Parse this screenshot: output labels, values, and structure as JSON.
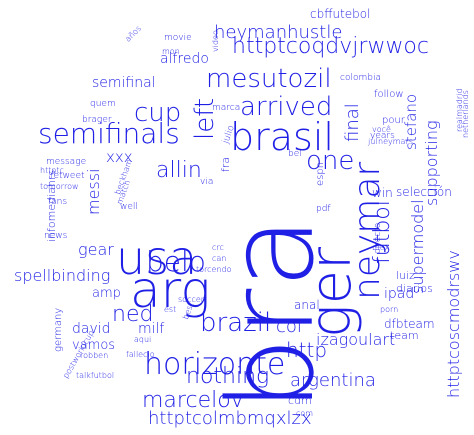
{
  "cloud": {
    "color": "#1f1fe6",
    "words": [
      {
        "text": "bra",
        "size": 118,
        "rot": -90
      },
      {
        "text": "arg",
        "size": 50,
        "rot": 0
      },
      {
        "text": "ger",
        "size": 56,
        "rot": -90
      },
      {
        "text": "usa",
        "size": 46,
        "rot": 0
      },
      {
        "text": "brasil",
        "size": 38,
        "rot": 0
      },
      {
        "text": "neymar",
        "size": 36,
        "rot": -90
      },
      {
        "text": "horizonte",
        "size": 30,
        "rot": 0
      },
      {
        "text": "semifinals",
        "size": 28,
        "rot": 0
      },
      {
        "text": "mesutozil",
        "size": 26,
        "rot": 0
      },
      {
        "text": "arrived",
        "size": 26,
        "rot": 0
      },
      {
        "text": "brazil",
        "size": 26,
        "rot": 0
      },
      {
        "text": "belo",
        "size": 28,
        "rot": 0
      },
      {
        "text": "cup",
        "size": 26,
        "rot": 0
      },
      {
        "text": "left",
        "size": 26,
        "rot": -90
      },
      {
        "text": "one",
        "size": 26,
        "rot": 0
      },
      {
        "text": "allin",
        "size": 22,
        "rot": 0
      },
      {
        "text": "futbol",
        "size": 22,
        "rot": -90
      },
      {
        "text": "httptcoqdvjrwwoc",
        "size": 22,
        "rot": 0
      },
      {
        "text": "nothing",
        "size": 22,
        "rot": 0
      },
      {
        "text": "marcelov",
        "size": 22,
        "rot": 0
      },
      {
        "text": "ned",
        "size": 22,
        "rot": 0
      },
      {
        "text": "http",
        "size": 20,
        "rot": 0
      },
      {
        "text": "heymanhustle",
        "size": 18,
        "rot": 0
      },
      {
        "text": "httptcolmbmqxlzx",
        "size": 18,
        "rot": 0
      },
      {
        "text": "argentina",
        "size": 18,
        "rot": 0
      },
      {
        "text": "col",
        "size": 18,
        "rot": 0
      },
      {
        "text": "final",
        "size": 18,
        "rot": -90
      },
      {
        "text": "httptcoscmodrswv",
        "size": 16,
        "rot": -90
      },
      {
        "text": "supermodel",
        "size": 16,
        "rot": -90
      },
      {
        "text": "supporting",
        "size": 16,
        "rot": -90
      },
      {
        "text": "izagoulart",
        "size": 16,
        "rot": 0
      },
      {
        "text": "spellbinding",
        "size": 16,
        "rot": 0
      },
      {
        "text": "messi",
        "size": 16,
        "rot": -90
      },
      {
        "text": "gear",
        "size": 16,
        "rot": 0
      },
      {
        "text": "stefano",
        "size": 15,
        "rot": -90
      },
      {
        "text": "xxx",
        "size": 15,
        "rot": 0
      },
      {
        "text": "alfredo",
        "size": 14,
        "rot": 0
      },
      {
        "text": "semifinal",
        "size": 14,
        "rot": 0
      },
      {
        "text": "ipad",
        "size": 14,
        "rot": 0
      },
      {
        "text": "david",
        "size": 14,
        "rot": 0
      },
      {
        "text": "milf",
        "size": 14,
        "rot": 0
      },
      {
        "text": "vamos",
        "size": 13,
        "rot": 0
      },
      {
        "text": "amp",
        "size": 13,
        "rot": 0
      },
      {
        "text": "anal",
        "size": 12,
        "rot": 0
      },
      {
        "text": "win",
        "size": 12,
        "rot": 0
      },
      {
        "text": "dfbteam",
        "size": 12,
        "rot": 0
      },
      {
        "text": "selección",
        "size": 12,
        "rot": 0
      },
      {
        "text": "cbffutebol",
        "size": 12,
        "rot": 0
      },
      {
        "text": "infomediahrs",
        "size": 11,
        "rot": -90
      },
      {
        "text": "germany",
        "size": 10,
        "rot": -90
      },
      {
        "text": "team",
        "size": 11,
        "rot": 0
      },
      {
        "text": "luiz",
        "size": 11,
        "rot": 0
      },
      {
        "text": "diarios",
        "size": 11,
        "rot": 0
      },
      {
        "text": "fra",
        "size": 11,
        "rot": -90
      },
      {
        "text": "cdm",
        "size": 11,
        "rot": 0
      },
      {
        "text": "espn",
        "size": 10,
        "rot": -90
      },
      {
        "text": "follow",
        "size": 10,
        "rot": 0
      },
      {
        "text": "pour",
        "size": 10,
        "rot": 0
      },
      {
        "text": "colombia",
        "size": 9,
        "rot": 0
      },
      {
        "text": "brager",
        "size": 9,
        "rot": 0
      },
      {
        "text": "message",
        "size": 9,
        "rot": 0
      },
      {
        "text": "fans",
        "size": 9,
        "rot": 0
      },
      {
        "text": "news",
        "size": 9,
        "rot": 0
      },
      {
        "text": "retweet",
        "size": 9,
        "rot": 0
      },
      {
        "text": "tomorrow",
        "size": 8,
        "rot": 0
      },
      {
        "text": "httptc",
        "size": 8,
        "rot": 0
      },
      {
        "text": "quem",
        "size": 9,
        "rot": 0
      },
      {
        "text": "marca",
        "size": 9,
        "rot": 0
      },
      {
        "text": "movie",
        "size": 9,
        "rot": 0
      },
      {
        "text": "mon",
        "size": 8,
        "rot": 0
      },
      {
        "text": "años",
        "size": 8,
        "rot": -45
      },
      {
        "text": "video",
        "size": 8,
        "rot": -90
      },
      {
        "text": "julio",
        "size": 9,
        "rot": -70
      },
      {
        "text": "well",
        "size": 9,
        "rot": 0
      },
      {
        "text": "beckham",
        "size": 8,
        "rot": -70
      },
      {
        "text": "match",
        "size": 8,
        "rot": -70
      },
      {
        "text": "via",
        "size": 9,
        "rot": 0
      },
      {
        "text": "bel",
        "size": 9,
        "rot": 0
      },
      {
        "text": "pdf",
        "size": 9,
        "rot": 0
      },
      {
        "text": "years",
        "size": 9,
        "rot": 0
      },
      {
        "text": "você",
        "size": 8,
        "rot": 0
      },
      {
        "text": "jul",
        "size": 8,
        "rot": 0
      },
      {
        "text": "neymars",
        "size": 8,
        "rot": 0
      },
      {
        "text": "netherlands",
        "size": 8,
        "rot": -90
      },
      {
        "text": "realmadrid",
        "size": 8,
        "rot": -90
      },
      {
        "text": "directo",
        "size": 9,
        "rot": -90
      },
      {
        "text": "mex",
        "size": 8,
        "rot": 0
      },
      {
        "text": "porn",
        "size": 8,
        "rot": 0
      },
      {
        "text": "crc",
        "size": 8,
        "rot": 0
      },
      {
        "text": "can",
        "size": 8,
        "rot": 0
      },
      {
        "text": "torcendo",
        "size": 8,
        "rot": 0
      },
      {
        "text": "soccer",
        "size": 8,
        "rot": 0
      },
      {
        "text": "est",
        "size": 8,
        "rot": 0
      },
      {
        "text": "best",
        "size": 8,
        "rot": -70
      },
      {
        "text": "aqui",
        "size": 8,
        "rot": 0
      },
      {
        "text": "fallecio",
        "size": 8,
        "rot": 0
      },
      {
        "text": "robben",
        "size": 8,
        "rot": 0
      },
      {
        "text": "postworldcup",
        "size": 8,
        "rot": -60
      },
      {
        "text": "talkfutbol",
        "size": 8,
        "rot": 0
      },
      {
        "text": "com",
        "size": 8,
        "rot": 0
      }
    ]
  }
}
